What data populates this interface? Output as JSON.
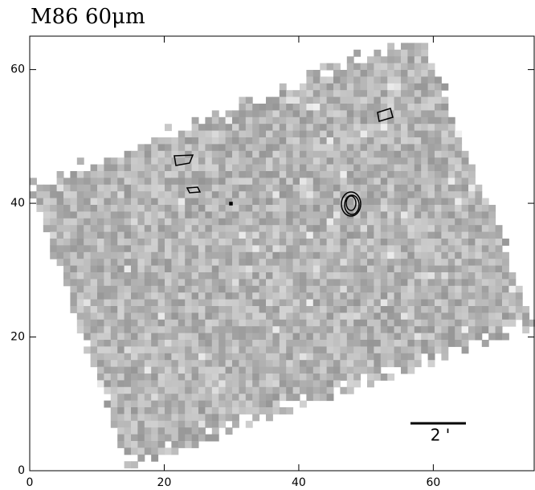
{
  "chart_data": {
    "type": "image",
    "title": "M86 60μm",
    "xlim": [
      0,
      75
    ],
    "ylim": [
      0,
      65
    ],
    "xticks": [
      0,
      20,
      40,
      60
    ],
    "yticks": [
      0,
      20,
      40,
      60
    ],
    "scale_bar_label": "2 '",
    "colormap": "gray"
  }
}
